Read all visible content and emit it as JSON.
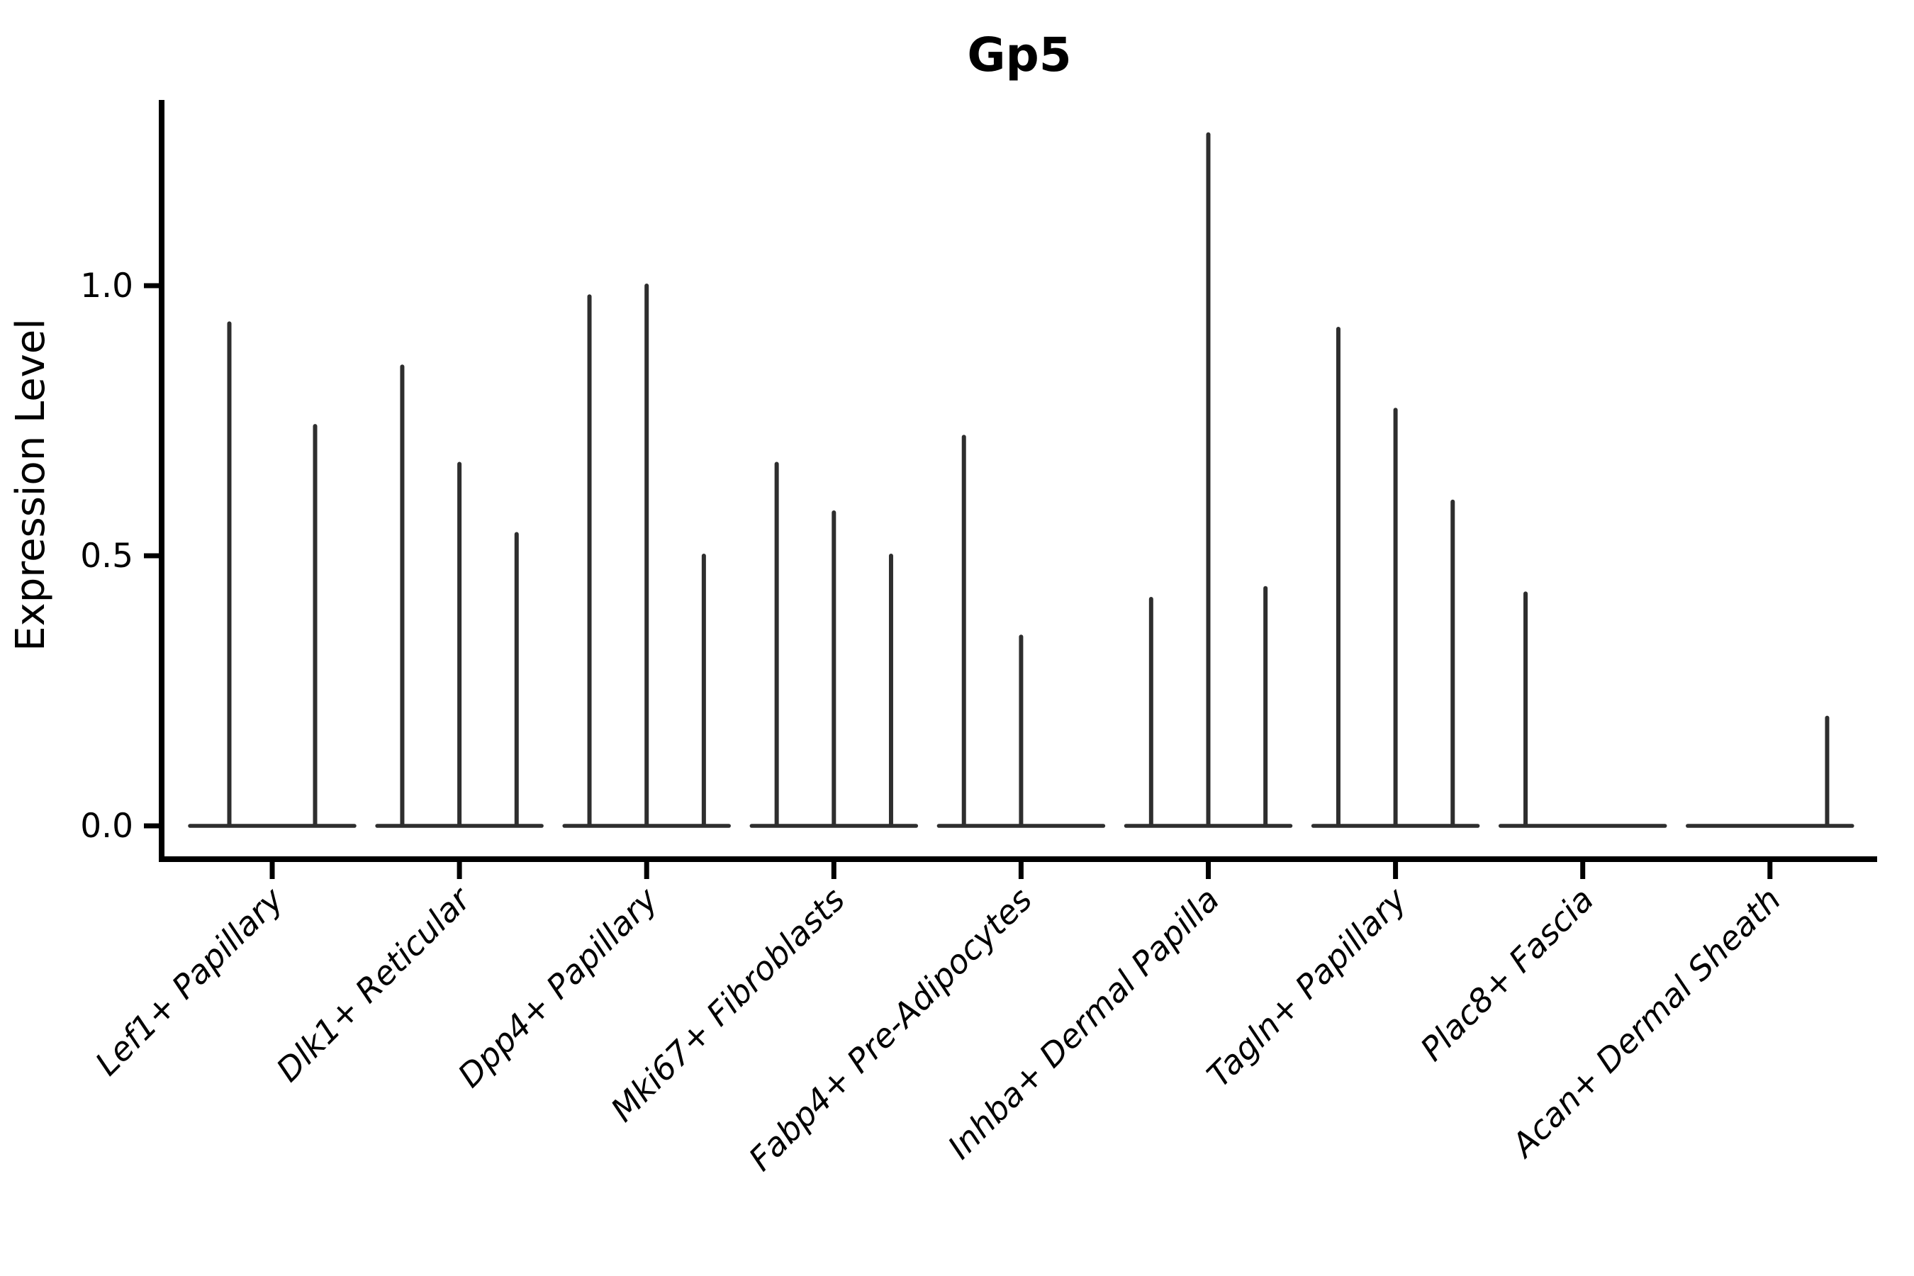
{
  "figure": {
    "title": "Gp5"
  },
  "y_axis": {
    "label": "Expression Level",
    "tick_labels": [
      "0.0",
      "0.5",
      "1.0"
    ]
  },
  "x_axis": {
    "tick_labels": [
      "Lef1+ Papillary",
      "Dlk1+ Reticular",
      "Dpp4+ Papillary",
      "Mki67+ Fibroblasts",
      "Fabp4+ Pre-Adipocytes",
      "Inhba+ Dermal Papilla",
      "Tagln+ Papillary",
      "Plac8+ Fascia",
      "Acan+ Dermal Sheath"
    ]
  },
  "chart_data": {
    "type": "violin",
    "title": "Gp5",
    "xlabel": "",
    "ylabel": "Expression Level",
    "ylim": [
      0,
      1.34
    ],
    "yticks": [
      0.0,
      0.5,
      1.0
    ],
    "grid": false,
    "legend_position": "none",
    "x_tick_rotation_degrees": 45,
    "x_tick_font_style": "italic",
    "line_color": "#2e2e2e",
    "axis_color": "#000000",
    "background_color": "#ffffff",
    "distribution_note": "Expression is concentrated at 0 for every group: each violin renders as a flat horizontal base at y=0 with a single thin spike rising to the group maximum; value 0 means a completely flat violin with no spike.",
    "categories": [
      "Lef1+ Papillary",
      "Dlk1+ Reticular",
      "Dpp4+ Papillary",
      "Mki67+ Fibroblasts",
      "Fabp4+ Pre-Adipocytes",
      "Inhba+ Dermal Papilla",
      "Tagln+ Papillary",
      "Plac8+ Fascia",
      "Acan+ Dermal Sheath"
    ],
    "violins": [
      {
        "category": "Lef1+ Papillary",
        "spike_maxima": [
          0.93,
          0.74
        ]
      },
      {
        "category": "Dlk1+ Reticular",
        "spike_maxima": [
          0.85,
          0.67,
          0.54
        ]
      },
      {
        "category": "Dpp4+ Papillary",
        "spike_maxima": [
          0.98,
          1.0,
          0.5
        ]
      },
      {
        "category": "Mki67+ Fibroblasts",
        "spike_maxima": [
          0.67,
          0.58,
          0.5
        ]
      },
      {
        "category": "Fabp4+ Pre-Adipocytes",
        "spike_maxima": [
          0.72,
          0.35,
          0
        ]
      },
      {
        "category": "Inhba+ Dermal Papilla",
        "spike_maxima": [
          0.42,
          1.28,
          0.44
        ]
      },
      {
        "category": "Tagln+ Papillary",
        "spike_maxima": [
          0.92,
          0.77,
          0.6
        ]
      },
      {
        "category": "Plac8+ Fascia",
        "spike_maxima": [
          0.43,
          0,
          0
        ]
      },
      {
        "category": "Acan+ Dermal Sheath",
        "spike_maxima": [
          0,
          0,
          0.2
        ]
      }
    ]
  }
}
